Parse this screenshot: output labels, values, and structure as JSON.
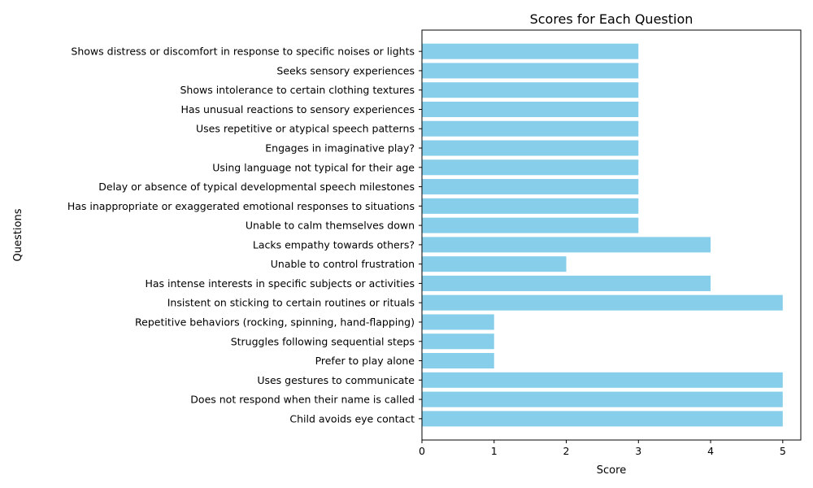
{
  "chart_data": {
    "type": "bar",
    "orientation": "horizontal",
    "title": "Scores for Each Question",
    "xlabel": "Score",
    "ylabel": "Questions",
    "xlim": [
      0,
      5.25
    ],
    "xticks": [
      0,
      1,
      2,
      3,
      4,
      5
    ],
    "grid": false,
    "bar_color": "#87ceeb",
    "categories": [
      "Child avoids eye contact",
      "Does not respond when their name is called",
      "Uses gestures to communicate",
      "Prefer to play alone",
      "Struggles following sequential steps",
      "Repetitive behaviors (rocking, spinning, hand-flapping)",
      "Insistent on sticking to certain routines or rituals",
      "Has intense interests in specific subjects or activities",
      "Unable to control frustration",
      "Lacks empathy towards others?",
      "Unable to calm themselves down",
      "Has inappropriate or exaggerated emotional responses to situations",
      "Delay or absence of typical developmental speech milestones",
      "Using language not typical for their age",
      "Engages in imaginative play?",
      "Uses repetitive or atypical speech patterns",
      "Has unusual reactions to sensory experiences",
      "Shows intolerance to certain clothing textures",
      "Seeks sensory experiences",
      "Shows distress or discomfort in response to specific noises or lights"
    ],
    "values": [
      5,
      5,
      5,
      1,
      1,
      1,
      5,
      4,
      2,
      4,
      3,
      3,
      3,
      3,
      3,
      3,
      3,
      3,
      3,
      3
    ]
  }
}
